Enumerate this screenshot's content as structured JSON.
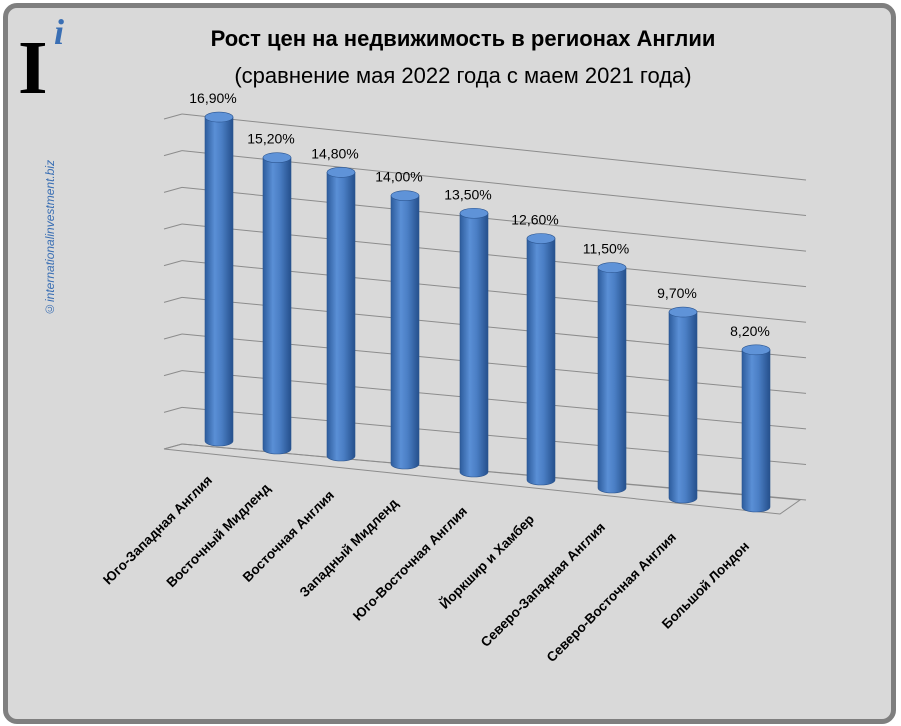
{
  "logo": {
    "letter": "I",
    "accent": "i"
  },
  "watermark": "©internationalinvestment.biz",
  "colors": {
    "background": "#d9d9d9",
    "frame": "#7f7f7f",
    "bar": "#4a7ec4",
    "accent": "#3a6fb4"
  },
  "chart_data": {
    "type": "bar",
    "title": "Рост цен на недвижимость в регионах Англии",
    "subtitle": "(сравнение мая 2022 года с маем 2021 года)",
    "categories": [
      "Юго-Западная Англия",
      "Восточный Мидленд",
      "Восточная Англия",
      "Западный Мидленд",
      "Юго-Восточная Англия",
      "Йоркшир и Хамбер",
      "Северо-Западная Англия",
      "Северо-Восточная Англия",
      "Большой Лондон"
    ],
    "values": [
      16.9,
      15.2,
      14.8,
      14.0,
      13.5,
      12.6,
      11.5,
      9.7,
      8.2
    ],
    "data_labels": [
      "16,90%",
      "15,20%",
      "14,80%",
      "14,00%",
      "13,50%",
      "12,60%",
      "11,50%",
      "9,70%",
      "8,20%"
    ],
    "ylim": [
      0,
      18
    ],
    "grid": true,
    "legend": "none",
    "style": "3d-cylinder"
  }
}
